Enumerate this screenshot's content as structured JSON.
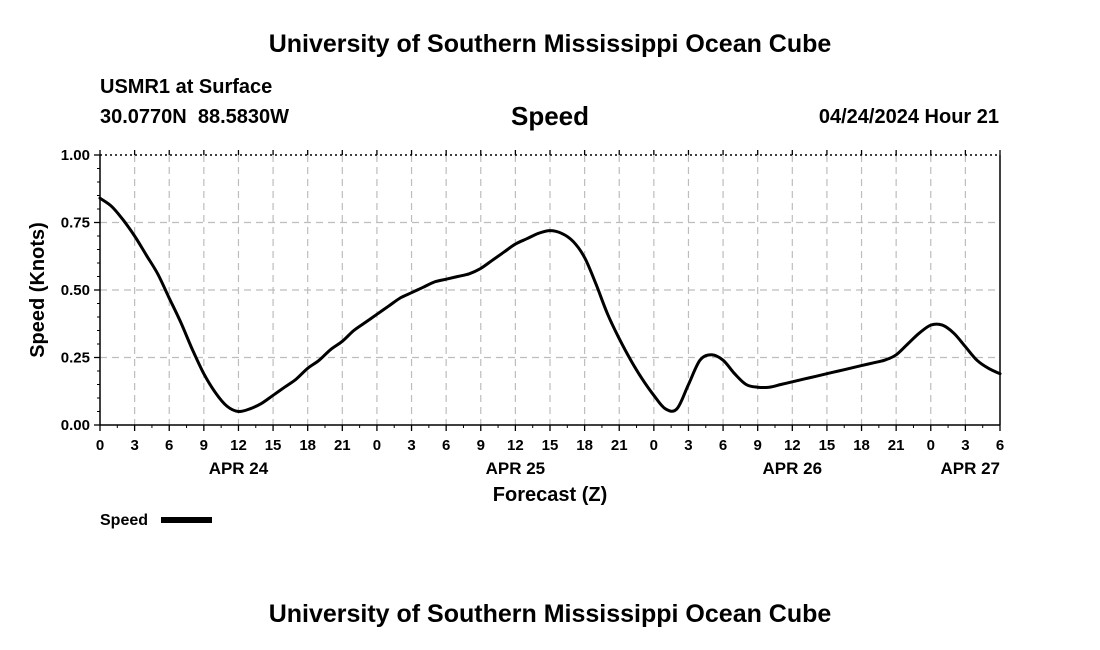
{
  "header": {
    "title": "University of Southern Mississippi Ocean Cube",
    "station": "USMR1 at Surface",
    "coords": "30.0770N  88.5830W",
    "variable": "Speed",
    "run": "04/24/2024 Hour 21"
  },
  "footer": {
    "title": "University of Southern Mississippi Ocean Cube"
  },
  "chart_data": {
    "type": "line",
    "title": "Speed",
    "xlabel": "Forecast (Z)",
    "ylabel": "Speed (Knots)",
    "ylim": [
      0,
      1
    ],
    "xlim": [
      0,
      78
    ],
    "grid": true,
    "legend_position": "bottom-left",
    "x_tick_labels": [
      "0",
      "3",
      "6",
      "9",
      "12",
      "15",
      "18",
      "21",
      "0",
      "3",
      "6",
      "9",
      "12",
      "15",
      "18",
      "21",
      "0",
      "3",
      "6",
      "9",
      "12",
      "15",
      "18",
      "21",
      "0",
      "3",
      "6"
    ],
    "y_tick_labels": [
      "0.00",
      "0.25",
      "0.50",
      "0.75",
      "1.00"
    ],
    "date_labels": [
      {
        "text": "APR 24",
        "x": 12
      },
      {
        "text": "APR 25",
        "x": 36
      },
      {
        "text": "APR 26",
        "x": 60
      },
      {
        "text": "APR 27",
        "x": 78
      }
    ],
    "series": [
      {
        "name": "Speed",
        "color": "#000000",
        "x": [
          0,
          1,
          2,
          3,
          4,
          5,
          6,
          7,
          8,
          9,
          10,
          11,
          12,
          13,
          14,
          15,
          16,
          17,
          18,
          19,
          20,
          21,
          22,
          23,
          24,
          25,
          26,
          27,
          28,
          29,
          30,
          31,
          32,
          33,
          34,
          35,
          36,
          37,
          38,
          39,
          40,
          41,
          42,
          43,
          44,
          45,
          46,
          47,
          48,
          49,
          50,
          51,
          52,
          53,
          54,
          55,
          56,
          57,
          58,
          59,
          60,
          61,
          62,
          63,
          64,
          65,
          66,
          67,
          68,
          69,
          70,
          71,
          72,
          73,
          74,
          75,
          76,
          77,
          78
        ],
        "y": [
          0.84,
          0.81,
          0.76,
          0.7,
          0.63,
          0.56,
          0.47,
          0.38,
          0.28,
          0.19,
          0.12,
          0.07,
          0.05,
          0.06,
          0.08,
          0.11,
          0.14,
          0.17,
          0.21,
          0.24,
          0.28,
          0.31,
          0.35,
          0.38,
          0.41,
          0.44,
          0.47,
          0.49,
          0.51,
          0.53,
          0.54,
          0.55,
          0.56,
          0.58,
          0.61,
          0.64,
          0.67,
          0.69,
          0.71,
          0.72,
          0.71,
          0.68,
          0.62,
          0.52,
          0.41,
          0.32,
          0.24,
          0.17,
          0.11,
          0.06,
          0.06,
          0.15,
          0.24,
          0.26,
          0.24,
          0.19,
          0.15,
          0.14,
          0.14,
          0.15,
          0.16,
          0.17,
          0.18,
          0.19,
          0.2,
          0.21,
          0.22,
          0.23,
          0.24,
          0.26,
          0.3,
          0.34,
          0.37,
          0.37,
          0.34,
          0.29,
          0.24,
          0.21,
          0.19
        ]
      }
    ]
  }
}
